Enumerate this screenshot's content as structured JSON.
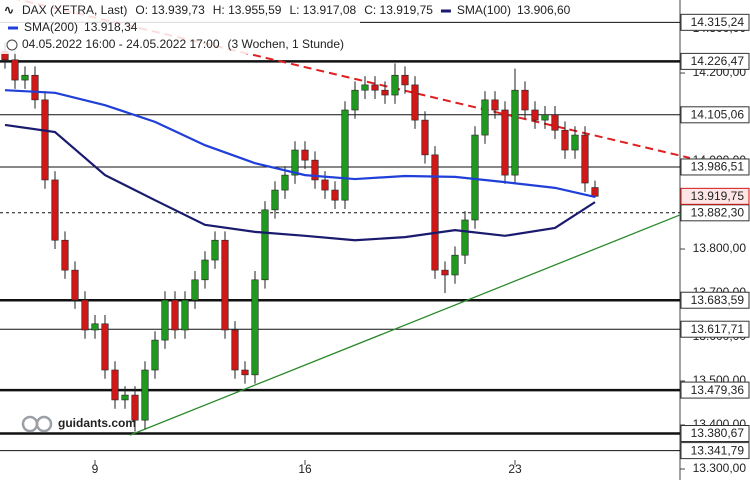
{
  "chart_data": {
    "type": "candlestick",
    "header": {
      "instrument": "DAX (XETRA, Last)",
      "ohlc": [
        "O: 13.939,73",
        "H: 13.955,59",
        "L: 13.917,08",
        "C: 13.919,75"
      ],
      "period": "04.05.2022 16:00 - 24.05.2022 17:00",
      "span": "(3 Wochen, 1 Stunde)"
    },
    "watermark": "guidants.com",
    "x": [
      0,
      1,
      2,
      3,
      4,
      5,
      6,
      7,
      8,
      9,
      10,
      11,
      12,
      13,
      14,
      15,
      16,
      17,
      18,
      19,
      20,
      21,
      22,
      23,
      24,
      25,
      26,
      27,
      28,
      29,
      30,
      31,
      32,
      33,
      34,
      35,
      36,
      37,
      38,
      39,
      40,
      41,
      42,
      43,
      44,
      45,
      46,
      47,
      48,
      49,
      50,
      51,
      52,
      53,
      54,
      55,
      56,
      57,
      58,
      59
    ],
    "open": [
      14250,
      14230,
      14184,
      14195,
      14139,
      13957,
      13820,
      13752,
      13684,
      13616,
      13630,
      13525,
      13457,
      13468,
      13411,
      13525,
      13593,
      13684,
      13616,
      13684,
      13730,
      13775,
      13820,
      13616,
      13525,
      13514,
      13730,
      13889,
      13934,
      13968,
      14025,
      14002,
      13957,
      13934,
      13911,
      14116,
      14161,
      14173,
      14161,
      14150,
      14195,
      14173,
      14093,
      14014,
      13752,
      13741,
      13786,
      13866,
      14059,
      14139,
      14116,
      13968,
      14161,
      14116,
      14093,
      14105,
      14070,
      14025,
      14059,
      13939.73
    ],
    "high": [
      14270,
      14250,
      14215,
      14215,
      14159,
      13977,
      13840,
      13772,
      13704,
      13650,
      13650,
      13545,
      13488,
      13488,
      13545,
      13613,
      13704,
      13704,
      13704,
      13750,
      13795,
      13840,
      13840,
      13636,
      13545,
      13750,
      13909,
      13954,
      13988,
      14045,
      14045,
      14022,
      13977,
      13954,
      14136,
      14181,
      14193,
      14193,
      14181,
      14222,
      14215,
      14193,
      14113,
      14034,
      13772,
      13806,
      13886,
      14079,
      14159,
      14159,
      14136,
      14210,
      14181,
      14136,
      14125,
      14125,
      14090,
      14079,
      14079,
      13955.59
    ],
    "low": [
      14210,
      14164,
      14164,
      14119,
      13937,
      13800,
      13732,
      13664,
      13596,
      13596,
      13505,
      13437,
      13437,
      13385,
      13391,
      13505,
      13573,
      13596,
      13596,
      13664,
      13710,
      13755,
      13596,
      13505,
      13494,
      13494,
      13710,
      13869,
      13914,
      13948,
      13982,
      13937,
      13914,
      13891,
      13891,
      14096,
      14141,
      14141,
      14130,
      14130,
      14153,
      14073,
      13994,
      13732,
      13700,
      13721,
      13766,
      13846,
      14039,
      14096,
      13948,
      13948,
      14096,
      14073,
      14073,
      14050,
      14005,
      14005,
      13930,
      13917.08
    ],
    "close": [
      14230,
      14184,
      14195,
      14139,
      13957,
      13820,
      13752,
      13684,
      13616,
      13630,
      13525,
      13457,
      13468,
      13411,
      13525,
      13593,
      13684,
      13616,
      13684,
      13730,
      13775,
      13820,
      13616,
      13525,
      13514,
      13730,
      13889,
      13934,
      13968,
      14025,
      14002,
      13957,
      13934,
      13911,
      14116,
      14161,
      14173,
      14161,
      14150,
      14195,
      14173,
      14093,
      14014,
      13752,
      13741,
      13786,
      13866,
      14059,
      14139,
      14116,
      13968,
      14161,
      14116,
      14093,
      14105,
      14070,
      14025,
      14059,
      13950,
      13919.75
    ],
    "up_color": "#1f9a1f",
    "down_color": "#d01818",
    "series": [
      {
        "name": "SMA(100)",
        "color": "#1a1a6e",
        "x": [
          0,
          5,
          10,
          15,
          20,
          25,
          30,
          35,
          40,
          45,
          50,
          55,
          59
        ],
        "values": [
          14082,
          14066,
          13968,
          13911,
          13855,
          13839,
          13830,
          13820,
          13827,
          13843,
          13830,
          13848,
          13906.6
        ],
        "value_labels": [
          null,
          null,
          null,
          null,
          null,
          null,
          null,
          null,
          null,
          null,
          null,
          null,
          "13.906,60"
        ]
      },
      {
        "name": "SMA(200)",
        "color": "#1f3fd8",
        "x": [
          0,
          5,
          10,
          15,
          20,
          25,
          30,
          35,
          40,
          45,
          50,
          55,
          59
        ],
        "values": [
          14161,
          14155,
          14127,
          14089,
          14036,
          13995,
          13968,
          13959,
          13966,
          13964,
          13952,
          13939,
          13918.34
        ],
        "value_labels": [
          null,
          null,
          null,
          null,
          null,
          null,
          null,
          null,
          null,
          null,
          null,
          null,
          "13.918,34"
        ]
      }
    ],
    "trendlines": [
      {
        "color": "#e02020",
        "dashed": true,
        "x": [
          -0.5,
          68.5
        ],
        "y": [
          14377,
          14007
        ]
      },
      {
        "color": "#2a8a2a",
        "dashed": false,
        "x": [
          12.5,
          68
        ],
        "y": [
          13377,
          13882
        ]
      }
    ],
    "levels": [
      {
        "value": 14315.24,
        "label": "14.315,24",
        "style": "thin"
      },
      {
        "value": 14226.47,
        "label": "14.226,47",
        "style": "thick"
      },
      {
        "value": 14105.06,
        "label": "14.105,06",
        "style": "thin"
      },
      {
        "value": 13986.51,
        "label": "13.986,51",
        "style": "thin"
      },
      {
        "value": 13882.3,
        "label": "13.882,30",
        "style": "dashed"
      },
      {
        "value": 13683.59,
        "label": "13.683,59",
        "style": "thick"
      },
      {
        "value": 13617.71,
        "label": "13.617,71",
        "style": "thin"
      },
      {
        "value": 13479.36,
        "label": "13.479,36",
        "style": "thick"
      },
      {
        "value": 13380.67,
        "label": "13.380,67",
        "style": "thick"
      },
      {
        "value": 13341.79,
        "label": "13.341,79",
        "style": "thin"
      }
    ],
    "last_price": {
      "value": 13919.75,
      "label": "13.919,75",
      "color": "#d01818"
    },
    "xlim": [
      -0.5,
      67.5
    ],
    "ylim": [
      13275,
      14366
    ],
    "xticks": [
      {
        "value": 9,
        "label": "9"
      },
      {
        "value": 30,
        "label": "16"
      },
      {
        "value": 51,
        "label": "23"
      }
    ],
    "yticks": [
      {
        "value": 13300,
        "label": "13.300,00"
      },
      {
        "value": 13400,
        "label": "13.400,00"
      },
      {
        "value": 13500,
        "label": "13.500,00"
      },
      {
        "value": 13600,
        "label": "13.600,00"
      },
      {
        "value": 13700,
        "label": "13.700,00"
      },
      {
        "value": 13800,
        "label": "13.800,00"
      },
      {
        "value": 13900,
        "label": "13.900,00"
      },
      {
        "value": 14000,
        "label": "14.000,00"
      },
      {
        "value": 14100,
        "label": "14.100,00"
      },
      {
        "value": 14200,
        "label": "14.200,00"
      },
      {
        "value": 14300,
        "label": "14.300,00"
      }
    ],
    "grid": false
  }
}
